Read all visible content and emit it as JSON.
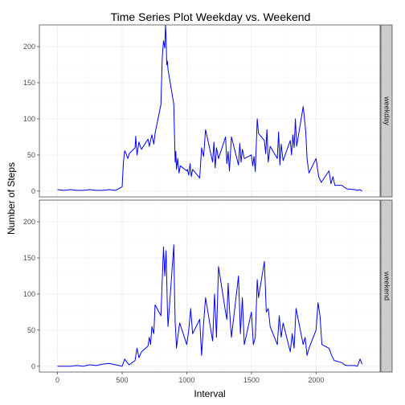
{
  "chart_data": {
    "type": "line",
    "title": "Time Series Plot Weekday vs. Weekend",
    "xlabel": "Interval",
    "ylabel": "Number of Steps",
    "xlim": [
      -140,
      2495
    ],
    "ylim": [
      -8,
      230
    ],
    "x_ticks": [
      0,
      500,
      1000,
      1500,
      2000
    ],
    "y_ticks": [
      0,
      50,
      100,
      150,
      200
    ],
    "grid": true,
    "facet_labels": [
      "weekday",
      "weekend"
    ],
    "colors": {
      "line": "#0000ff",
      "strip": "#cccccc",
      "panel_border": "#4d4d4d",
      "grid_major": "#ececec",
      "grid_minor": "#f7f7f7"
    },
    "series": [
      {
        "facet": "weekday",
        "x": [
          0,
          50,
          100,
          150,
          200,
          250,
          300,
          350,
          400,
          450,
          500,
          510,
          520,
          530,
          545,
          555,
          600,
          605,
          615,
          630,
          640,
          650,
          700,
          710,
          720,
          730,
          745,
          755,
          800,
          810,
          820,
          830,
          835,
          840,
          845,
          850,
          855,
          900,
          905,
          910,
          915,
          920,
          930,
          940,
          950,
          1000,
          1005,
          1015,
          1025,
          1035,
          1045,
          1100,
          1115,
          1130,
          1145,
          1200,
          1210,
          1220,
          1230,
          1245,
          1300,
          1310,
          1320,
          1330,
          1345,
          1400,
          1410,
          1420,
          1430,
          1445,
          1500,
          1510,
          1520,
          1530,
          1545,
          1555,
          1600,
          1610,
          1620,
          1630,
          1645,
          1700,
          1710,
          1720,
          1730,
          1745,
          1800,
          1810,
          1820,
          1830,
          1840,
          1850,
          1900,
          1910,
          1920,
          1930,
          1945,
          2000,
          2020,
          2040,
          2100,
          2115,
          2130,
          2145,
          2200,
          2220,
          2240,
          2300,
          2320,
          2340,
          2355
        ],
        "values": [
          2,
          1,
          2,
          1,
          1,
          2,
          1,
          1,
          2,
          1,
          6,
          40,
          56,
          52,
          45,
          52,
          60,
          76,
          50,
          68,
          62,
          58,
          72,
          62,
          70,
          78,
          65,
          80,
          120,
          185,
          208,
          198,
          230,
          215,
          175,
          180,
          168,
          120,
          75,
          40,
          55,
          30,
          45,
          25,
          35,
          28,
          30,
          22,
          38,
          20,
          30,
          18,
          60,
          48,
          85,
          40,
          68,
          32,
          60,
          45,
          75,
          38,
          55,
          28,
          75,
          36,
          66,
          40,
          58,
          45,
          50,
          35,
          48,
          27,
          100,
          80,
          70,
          52,
          85,
          40,
          62,
          45,
          82,
          36,
          65,
          42,
          70,
          50,
          78,
          60,
          100,
          62,
          117,
          100,
          82,
          45,
          25,
          45,
          20,
          12,
          28,
          10,
          20,
          8,
          8,
          5,
          3,
          2,
          1,
          2,
          0
        ]
      },
      {
        "facet": "weekend",
        "x": [
          0,
          50,
          100,
          150,
          200,
          250,
          300,
          350,
          400,
          450,
          500,
          520,
          540,
          555,
          600,
          615,
          630,
          650,
          700,
          710,
          720,
          730,
          745,
          755,
          800,
          810,
          820,
          830,
          840,
          850,
          855,
          900,
          905,
          910,
          915,
          920,
          930,
          945,
          1000,
          1015,
          1030,
          1045,
          1100,
          1115,
          1130,
          1145,
          1200,
          1215,
          1230,
          1245,
          1300,
          1310,
          1320,
          1330,
          1345,
          1400,
          1415,
          1430,
          1445,
          1500,
          1515,
          1530,
          1545,
          1555,
          1600,
          1615,
          1630,
          1645,
          1700,
          1715,
          1730,
          1745,
          1800,
          1815,
          1830,
          1845,
          1900,
          1915,
          1930,
          1945,
          2000,
          2015,
          2030,
          2045,
          2100,
          2120,
          2140,
          2200,
          2220,
          2240,
          2300,
          2320,
          2340,
          2355
        ],
        "values": [
          0,
          0,
          0,
          1,
          0,
          2,
          1,
          3,
          4,
          2,
          0,
          10,
          5,
          2,
          8,
          25,
          12,
          20,
          28,
          40,
          30,
          55,
          45,
          85,
          70,
          120,
          165,
          125,
          160,
          80,
          55,
          168,
          100,
          60,
          45,
          25,
          40,
          60,
          30,
          50,
          80,
          45,
          65,
          15,
          60,
          95,
          35,
          100,
          40,
          138,
          75,
          65,
          115,
          80,
          40,
          125,
          45,
          95,
          30,
          75,
          30,
          40,
          120,
          95,
          145,
          75,
          80,
          55,
          30,
          70,
          40,
          60,
          20,
          45,
          25,
          80,
          30,
          40,
          15,
          25,
          50,
          88,
          70,
          30,
          25,
          15,
          8,
          5,
          2,
          1,
          1,
          0,
          10,
          3
        ]
      }
    ]
  }
}
